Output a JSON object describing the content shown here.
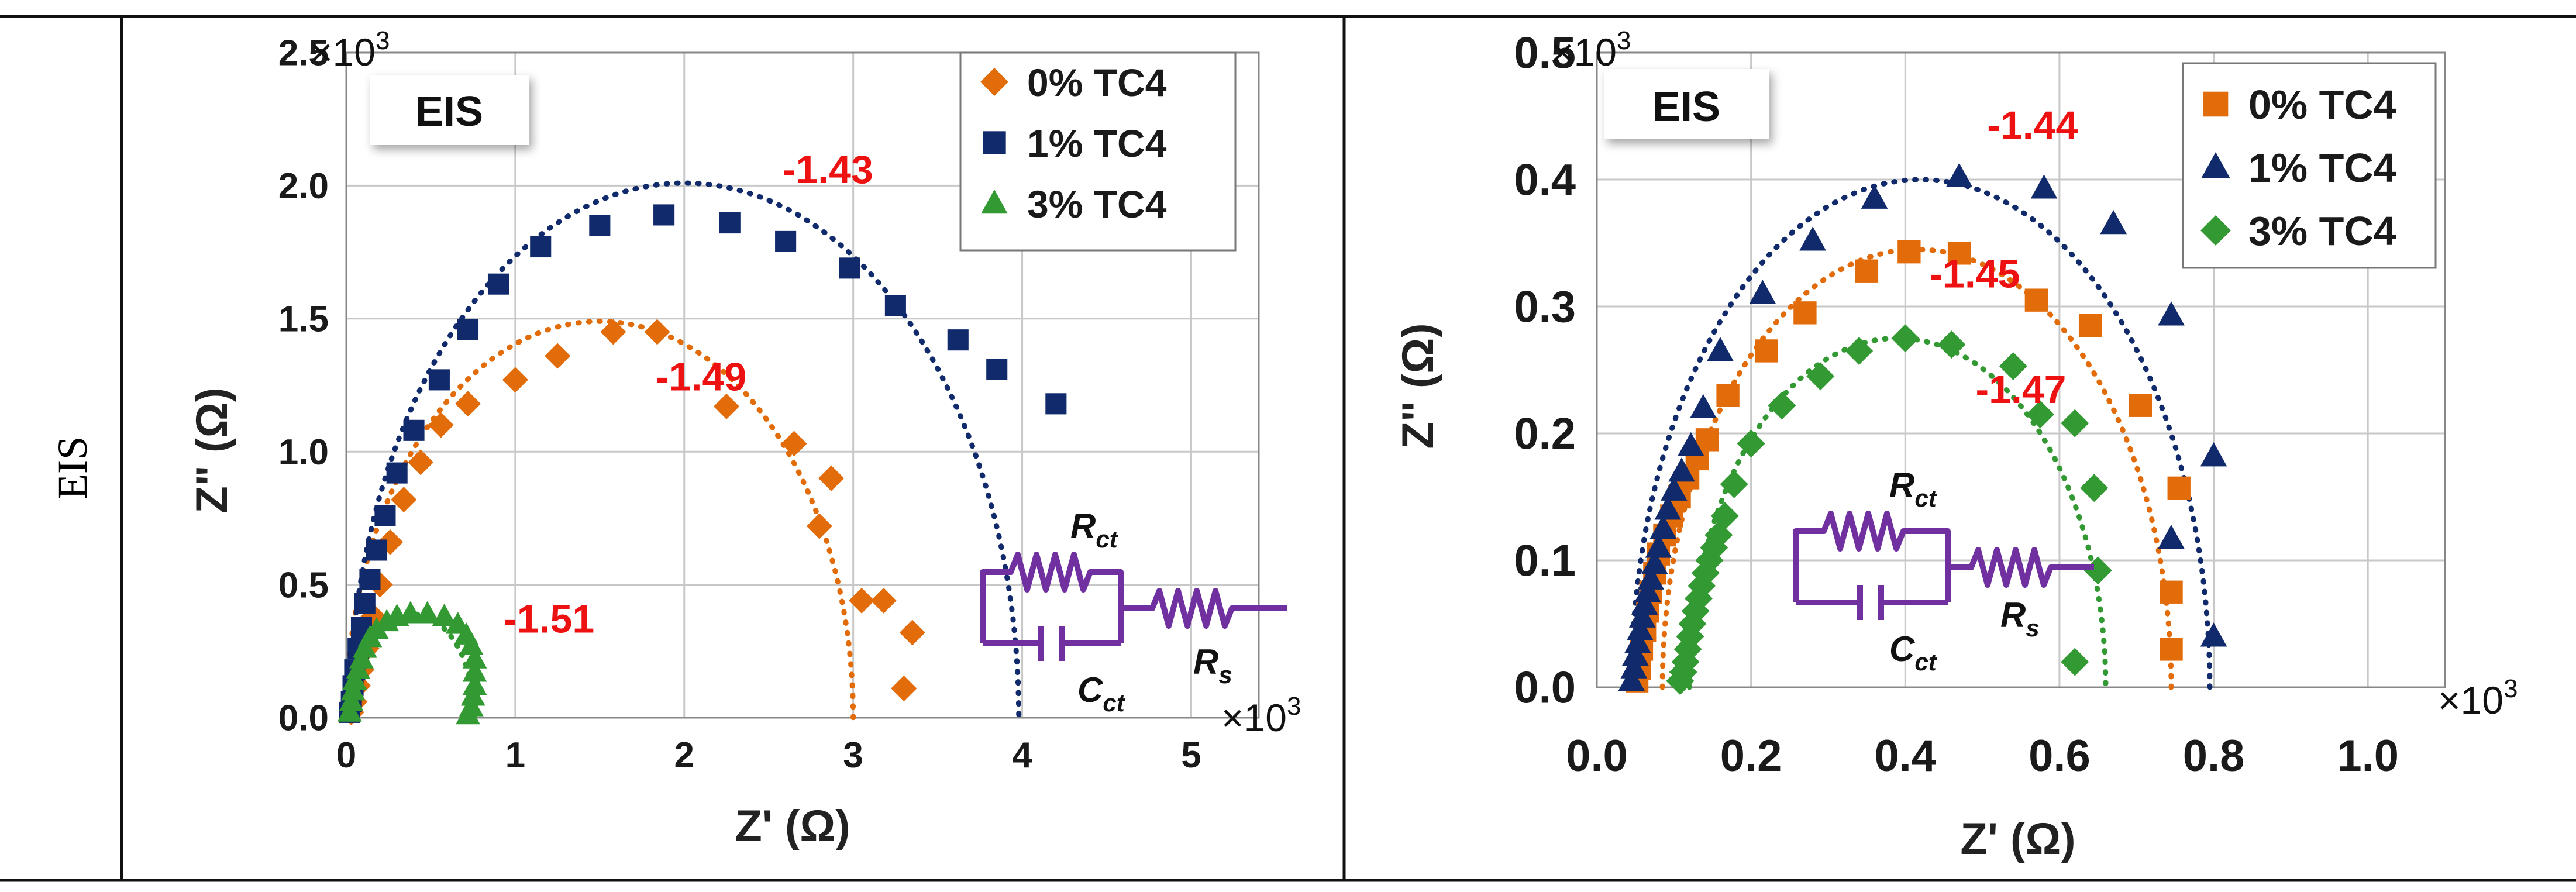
{
  "row_label": "EIS",
  "chart_data": [
    {
      "type": "scatter",
      "panel_label": "EIS",
      "xlabel": "Z' (Ω)",
      "ylabel": "Z\" (Ω)",
      "x_multiplier": "×10",
      "y_multiplier": "×10",
      "multiplier_exp": "3",
      "xlim": [
        0,
        5.4
      ],
      "ylim": [
        0,
        2.5
      ],
      "xticks": [
        0,
        1,
        2,
        3,
        4,
        5
      ],
      "xtick_labels": [
        "0",
        "1",
        "2",
        "3",
        "4",
        "5"
      ],
      "yticks": [
        0,
        0.5,
        1.0,
        1.5,
        2.0,
        2.5
      ],
      "ytick_labels": [
        "0.0",
        "0.5",
        "1.0",
        "1.5",
        "2.0",
        "2.5"
      ],
      "grid": true,
      "legend_position": "top-right",
      "series": [
        {
          "name": "0% TC4",
          "marker": "diamond",
          "color": "#e36c0a",
          "points": [
            [
              0.03,
              0.02
            ],
            [
              0.05,
              0.06
            ],
            [
              0.07,
              0.12
            ],
            [
              0.09,
              0.18
            ],
            [
              0.12,
              0.26
            ],
            [
              0.16,
              0.38
            ],
            [
              0.2,
              0.5
            ],
            [
              0.26,
              0.66
            ],
            [
              0.34,
              0.82
            ],
            [
              0.44,
              0.96
            ],
            [
              0.56,
              1.1
            ],
            [
              0.72,
              1.18
            ],
            [
              1.0,
              1.27
            ],
            [
              1.25,
              1.36
            ],
            [
              1.58,
              1.45
            ],
            [
              1.84,
              1.45
            ],
            [
              2.25,
              1.17
            ],
            [
              2.65,
              1.03
            ],
            [
              2.87,
              0.9
            ],
            [
              2.8,
              0.72
            ],
            [
              3.05,
              0.44
            ],
            [
              3.18,
              0.44
            ],
            [
              3.35,
              0.32
            ],
            [
              3.3,
              0.11
            ]
          ],
          "fit": {
            "cx": 1.5,
            "r": 1.5,
            "ry": 1.49
          }
        },
        {
          "name": "1% TC4",
          "marker": "square",
          "color": "#102a6b",
          "points": [
            [
              0.02,
              0.02
            ],
            [
              0.03,
              0.06
            ],
            [
              0.04,
              0.12
            ],
            [
              0.05,
              0.18
            ],
            [
              0.07,
              0.26
            ],
            [
              0.09,
              0.34
            ],
            [
              0.11,
              0.43
            ],
            [
              0.14,
              0.52
            ],
            [
              0.18,
              0.63
            ],
            [
              0.23,
              0.76
            ],
            [
              0.3,
              0.92
            ],
            [
              0.4,
              1.08
            ],
            [
              0.55,
              1.27
            ],
            [
              0.72,
              1.46
            ],
            [
              0.9,
              1.63
            ],
            [
              1.15,
              1.77
            ],
            [
              1.5,
              1.85
            ],
            [
              1.88,
              1.89
            ],
            [
              2.27,
              1.86
            ],
            [
              2.6,
              1.79
            ],
            [
              2.98,
              1.69
            ],
            [
              3.25,
              1.55
            ],
            [
              3.62,
              1.42
            ],
            [
              3.85,
              1.31
            ],
            [
              4.2,
              1.18
            ]
          ],
          "fit": {
            "cx": 2.0,
            "r": 1.98,
            "ry": 2.01
          }
        },
        {
          "name": "3% TC4",
          "marker": "triangle",
          "color": "#339933",
          "points": [
            [
              0.02,
              0.02
            ],
            [
              0.03,
              0.06
            ],
            [
              0.04,
              0.1
            ],
            [
              0.05,
              0.14
            ],
            [
              0.07,
              0.18
            ],
            [
              0.09,
              0.22
            ],
            [
              0.11,
              0.26
            ],
            [
              0.14,
              0.3
            ],
            [
              0.18,
              0.33
            ],
            [
              0.24,
              0.36
            ],
            [
              0.3,
              0.38
            ],
            [
              0.38,
              0.39
            ],
            [
              0.48,
              0.39
            ],
            [
              0.58,
              0.38
            ],
            [
              0.66,
              0.35
            ],
            [
              0.71,
              0.31
            ],
            [
              0.74,
              0.27
            ],
            [
              0.76,
              0.22
            ],
            [
              0.76,
              0.17
            ],
            [
              0.76,
              0.12
            ],
            [
              0.75,
              0.08
            ],
            [
              0.74,
              0.04
            ],
            [
              0.72,
              0.01
            ]
          ],
          "fit": {
            "cx": 0.39,
            "r": 0.37,
            "ry": 0.39
          }
        }
      ],
      "annotations": [
        {
          "text": "-1.43",
          "x": 2.85,
          "y": 2.01
        },
        {
          "text": "-1.49",
          "x": 2.1,
          "y": 1.23
        },
        {
          "text": "-1.51",
          "x": 1.2,
          "y": 0.32
        }
      ],
      "circuit": {
        "rct": "R",
        "rct_sub": "ct",
        "cct": "C",
        "cct_sub": "ct",
        "rs": "R",
        "rs_sub": "s"
      }
    },
    {
      "type": "scatter",
      "panel_label": "EIS",
      "xlabel": "Z' (Ω)",
      "ylabel": "Z\" (Ω)",
      "x_multiplier": "×10",
      "y_multiplier": "×10",
      "multiplier_exp": "3",
      "xlim": [
        0,
        1.1
      ],
      "ylim": [
        0,
        0.5
      ],
      "xticks": [
        0,
        0.2,
        0.4,
        0.6,
        0.8,
        1.0
      ],
      "xtick_labels": [
        "0.0",
        "0.2",
        "0.4",
        "0.6",
        "0.8",
        "1.0"
      ],
      "yticks": [
        0,
        0.1,
        0.2,
        0.3,
        0.4,
        0.5
      ],
      "ytick_labels": [
        "0.0",
        "0.1",
        "0.2",
        "0.3",
        "0.4",
        "0.5"
      ],
      "grid": true,
      "legend_position": "top-right",
      "series": [
        {
          "name": "0% TC4",
          "marker": "square",
          "color": "#e36c0a",
          "points": [
            [
              0.052,
              0.005
            ],
            [
              0.055,
              0.015
            ],
            [
              0.058,
              0.03
            ],
            [
              0.062,
              0.045
            ],
            [
              0.066,
              0.06
            ],
            [
              0.07,
              0.075
            ],
            [
              0.075,
              0.09
            ],
            [
              0.08,
              0.105
            ],
            [
              0.088,
              0.12
            ],
            [
              0.097,
              0.135
            ],
            [
              0.107,
              0.15
            ],
            [
              0.118,
              0.165
            ],
            [
              0.13,
              0.18
            ],
            [
              0.143,
              0.195
            ],
            [
              0.17,
              0.23
            ],
            [
              0.22,
              0.265
            ],
            [
              0.27,
              0.295
            ],
            [
              0.35,
              0.328
            ],
            [
              0.405,
              0.343
            ],
            [
              0.47,
              0.342
            ],
            [
              0.57,
              0.305
            ],
            [
              0.64,
              0.285
            ],
            [
              0.705,
              0.222
            ],
            [
              0.755,
              0.157
            ],
            [
              0.745,
              0.075
            ],
            [
              0.745,
              0.03
            ]
          ],
          "fit": {
            "cx": 0.415,
            "r": 0.33,
            "ry": 0.345
          }
        },
        {
          "name": "1% TC4",
          "marker": "triangle",
          "color": "#102a6b",
          "points": [
            [
              0.045,
              0.005
            ],
            [
              0.048,
              0.015
            ],
            [
              0.05,
              0.025
            ],
            [
              0.053,
              0.035
            ],
            [
              0.056,
              0.045
            ],
            [
              0.059,
              0.055
            ],
            [
              0.062,
              0.065
            ],
            [
              0.066,
              0.075
            ],
            [
              0.07,
              0.085
            ],
            [
              0.075,
              0.097
            ],
            [
              0.08,
              0.11
            ],
            [
              0.086,
              0.125
            ],
            [
              0.092,
              0.14
            ],
            [
              0.1,
              0.155
            ],
            [
              0.11,
              0.17
            ],
            [
              0.122,
              0.19
            ],
            [
              0.138,
              0.22
            ],
            [
              0.16,
              0.265
            ],
            [
              0.215,
              0.31
            ],
            [
              0.28,
              0.352
            ],
            [
              0.36,
              0.385
            ],
            [
              0.47,
              0.402
            ],
            [
              0.58,
              0.393
            ],
            [
              0.67,
              0.365
            ],
            [
              0.745,
              0.293
            ],
            [
              0.8,
              0.182
            ],
            [
              0.745,
              0.117
            ],
            [
              0.8,
              0.04
            ]
          ],
          "fit": {
            "cx": 0.42,
            "r": 0.375,
            "ry": 0.4
          }
        },
        {
          "name": "3% TC4",
          "marker": "diamond",
          "color": "#339933",
          "points": [
            [
              0.108,
              0.005
            ],
            [
              0.112,
              0.012
            ],
            [
              0.115,
              0.02
            ],
            [
              0.118,
              0.03
            ],
            [
              0.121,
              0.04
            ],
            [
              0.124,
              0.05
            ],
            [
              0.128,
              0.06
            ],
            [
              0.132,
              0.07
            ],
            [
              0.136,
              0.08
            ],
            [
              0.141,
              0.09
            ],
            [
              0.146,
              0.1
            ],
            [
              0.152,
              0.11
            ],
            [
              0.158,
              0.12
            ],
            [
              0.166,
              0.135
            ],
            [
              0.178,
              0.16
            ],
            [
              0.2,
              0.192
            ],
            [
              0.24,
              0.222
            ],
            [
              0.29,
              0.245
            ],
            [
              0.34,
              0.265
            ],
            [
              0.4,
              0.275
            ],
            [
              0.46,
              0.27
            ],
            [
              0.54,
              0.253
            ],
            [
              0.575,
              0.215
            ],
            [
              0.62,
              0.208
            ],
            [
              0.645,
              0.157
            ],
            [
              0.65,
              0.092
            ],
            [
              0.62,
              0.02
            ]
          ],
          "fit": {
            "cx": 0.39,
            "r": 0.27,
            "ry": 0.275
          }
        }
      ],
      "annotations": [
        {
          "text": "-1.44",
          "x": 0.565,
          "y": 0.432
        },
        {
          "text": "-1.45",
          "x": 0.49,
          "y": 0.315
        },
        {
          "text": "-1.47",
          "x": 0.55,
          "y": 0.224
        }
      ],
      "circuit": {
        "rct": "R",
        "rct_sub": "ct",
        "cct": "C",
        "cct_sub": "ct",
        "rs": "R",
        "rs_sub": "s"
      }
    }
  ]
}
